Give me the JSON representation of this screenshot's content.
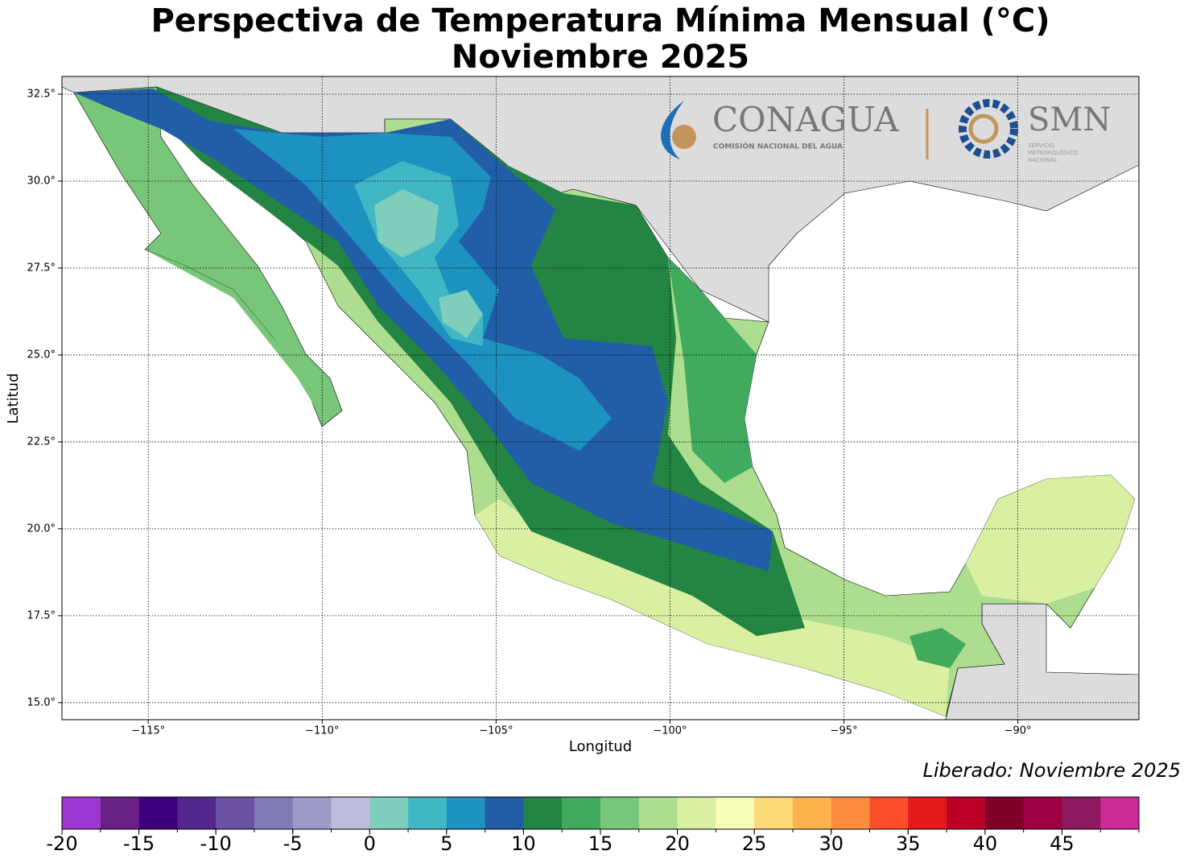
{
  "title": [
    "Perspectiva de Temperatura Mínima Mensual (°C)",
    "Noviembre 2025"
  ],
  "map": {
    "xlabel": "Longitud",
    "ylabel": "Latitud",
    "xlim": [
      -117.48,
      -86.52
    ],
    "ylim": [
      14.51,
      33.01
    ],
    "xticks": [
      {
        "value": -115,
        "label": "−115°"
      },
      {
        "value": -110,
        "label": "−110°"
      },
      {
        "value": -105,
        "label": "−105°"
      },
      {
        "value": -100,
        "label": "−100°"
      },
      {
        "value": -95,
        "label": "−95°"
      },
      {
        "value": -90,
        "label": "−90°"
      }
    ],
    "yticks": [
      {
        "value": 15,
        "label": "15.0°"
      },
      {
        "value": 17.5,
        "label": "17.5°"
      },
      {
        "value": 20,
        "label": "20.0°"
      },
      {
        "value": 22.5,
        "label": "22.5°"
      },
      {
        "value": 25,
        "label": "25.0°"
      },
      {
        "value": 27.5,
        "label": "27.5°"
      },
      {
        "value": 30,
        "label": "30.0°"
      },
      {
        "value": 32.5,
        "label": "32.5°"
      }
    ],
    "grid": true
  },
  "logos": {
    "conagua": "CONAGUA",
    "conagua_sub": "COMISIÓN NACIONAL DEL AGUA",
    "smn": "SMN",
    "smn_sub": [
      "SERVICIO",
      "METEOROLÓGICO",
      "NACIONAL"
    ]
  },
  "release": "Liberado: Noviembre 2025",
  "colorbar": {
    "bounds": [
      -20,
      -17.5,
      -15,
      -12.5,
      -10,
      -7.5,
      -5,
      -2.5,
      0,
      2.5,
      5,
      7.5,
      10,
      12.5,
      15,
      17.5,
      20,
      22.5,
      25,
      27.5,
      30,
      32.5,
      35,
      37.5,
      40,
      42.5,
      45,
      47.5,
      50
    ],
    "colors": [
      "#9b37d0",
      "#6a2187",
      "#3f007d",
      "#54278f",
      "#6a51a3",
      "#807dba",
      "#9e9ac8",
      "#bcbddc",
      "#7fcdbb",
      "#41b6c4",
      "#1d91c0",
      "#225ea8",
      "#238443",
      "#41ab5d",
      "#78c679",
      "#addd8e",
      "#d9f0a3",
      "#f7fcb9",
      "#fed976",
      "#feb24c",
      "#fd8d3c",
      "#fc4e2a",
      "#e31a1c",
      "#bd0026",
      "#800026",
      "#9e0142",
      "#8b1a5e",
      "#cc2a95"
    ],
    "ticks": [
      -20,
      -15,
      -10,
      -5,
      0,
      5,
      10,
      15,
      20,
      25,
      30,
      35,
      40,
      45
    ]
  }
}
